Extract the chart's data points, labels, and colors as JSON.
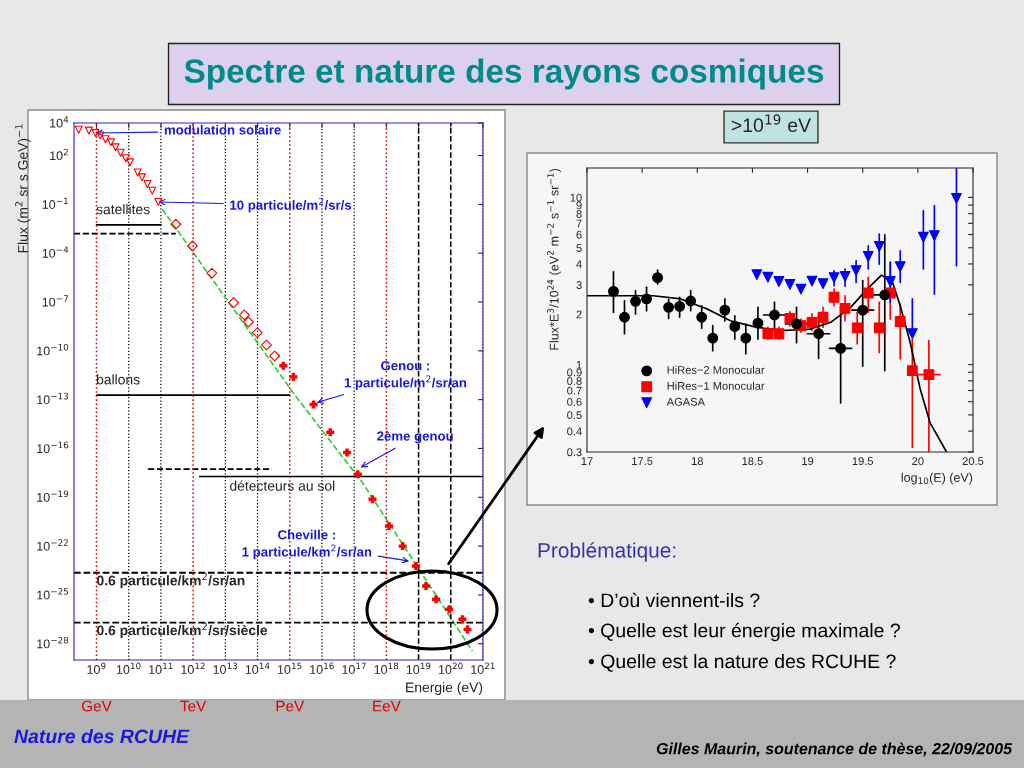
{
  "chart_data": [
    {
      "type": "scatter",
      "xlabel": "Energie (eV)",
      "ylabel": "Flux (m$^{2}$ sr s GeV)$^{−1}$",
      "log": "xy",
      "grid": "x",
      "xlim": [
        200000000.0,
        1e+21
      ],
      "ylim": [
        1e-29,
        10000.0
      ],
      "xticks": [
        {
          "value": 1000000000.0,
          "label": "10$^{9}$"
        },
        {
          "value": 10000000000.0,
          "label": "10$^{10}$"
        },
        {
          "value": 100000000000.0,
          "label": "10$^{11}$"
        },
        {
          "value": 1000000000000.0,
          "label": "10$^{12}$"
        },
        {
          "value": 10000000000000.0,
          "label": "10$^{13}$"
        },
        {
          "value": 100000000000000.0,
          "label": "10$^{14}$"
        },
        {
          "value": 1000000000000000.0,
          "label": "10$^{15}$"
        },
        {
          "value": 1e+16,
          "label": "10$^{16}$"
        },
        {
          "value": 1e+17,
          "label": "10$^{17}$"
        },
        {
          "value": 1e+18,
          "label": "10$^{18}$"
        },
        {
          "value": 1e+19,
          "label": "10$^{19}$"
        },
        {
          "value": 1e+20,
          "label": "10$^{20}$"
        },
        {
          "value": 1e+21,
          "label": "10$^{21}$"
        }
      ],
      "yticks": [
        {
          "value": 10000.0,
          "label": "10$^{4}$"
        },
        {
          "value": 100.0,
          "label": "10$^{2}$"
        },
        {
          "value": 0.1,
          "label": "10$^{−1}$"
        },
        {
          "value": 0.0001,
          "label": "10$^{−4}$"
        },
        {
          "value": 1e-07,
          "label": "10$^{−7}$"
        },
        {
          "value": 1e-10,
          "label": "10$^{−10}$"
        },
        {
          "value": 1e-13,
          "label": "10$^{−13}$"
        },
        {
          "value": 1e-16,
          "label": "10$^{−16}$"
        },
        {
          "value": 1e-19,
          "label": "10$^{−19}$"
        },
        {
          "value": 1e-22,
          "label": "10$^{−22}$"
        },
        {
          "value": 1e-25,
          "label": "10$^{−25}$"
        },
        {
          "value": 1e-28,
          "label": "10$^{−28}$"
        }
      ],
      "series": [
        {
          "type": "scatter",
          "marker": "triangle",
          "color": "#ff0000",
          "x": [
            280000000.0,
            580000000.0,
            930000000.0,
            1300000000.0,
            1900000000.0,
            2800000000.0,
            3900000000.0,
            5600000000.0,
            8100000000.0,
            11000000000.0,
            19000000000.0,
            26000000000.0,
            38000000000.0,
            54000000000.0,
            83000000000.0
          ],
          "values": [
            3900,
            3400,
            2400,
            1700,
            1000,
            650,
            320,
            150,
            68,
            38,
            9.1,
            4.6,
            1.8,
            0.69,
            0.14
          ]
        },
        {
          "type": "scatter",
          "marker": "diamond",
          "color": "#ff0000",
          "x": [
            290000000000.0,
            950000000000.0,
            3800000000000.0,
            18000000000000.0,
            39000000000000.0,
            52000000000000.0,
            98000000000000.0,
            190000000000000.0,
            340000000000000.0
          ],
          "values": [
            0.006,
            0.00028,
            5.9e-06,
            9.1e-08,
            1.6e-08,
            5.9e-09,
            1.3e-09,
            2.3e-10,
            4.8e-11
          ]
        },
        {
          "type": "scatter",
          "marker": "cross",
          "color": "#ff0000",
          "x": [
            630000000000000.0,
            1300000000000000.0,
            5500000000000000.0,
            1.8e+16,
            6e+16,
            1.3e+17,
            3.7e+17,
            1.2e+18,
            3.2e+18,
            8.3e+18,
            1.7e+19,
            3.5e+19,
            8.9e+19,
            2.3e+20,
            3.3e+20
          ],
          "values": [
            1.2e-11,
            2.5e-12,
            5e-14,
            1e-15,
            5.6e-17,
            2.6e-18,
            7.6e-20,
            1.7e-21,
            1e-22,
            6e-24,
            3.5e-25,
            5.4e-26,
            1.3e-26,
            3.2e-27,
            7.6e-28
          ]
        },
        {
          "type": "line",
          "line_style": "dashed",
          "color": "#33cc33",
          "x": [
            110000000000.0,
            1500000000000000.0,
            1.8e+17,
            4.7e+20
          ],
          "values": [
            0.051,
            1.7e-13,
            8.1e-19,
            3.5e-29
          ]
        },
        {
          "type": "line",
          "line_style": "solid",
          "color": "#000000",
          "x": [
            1000000000.0,
            100000000000.0
          ],
          "values": [
            0.0055,
            0.0055
          ]
        },
        {
          "type": "line",
          "line_style": "dashed",
          "color": "#000000",
          "x": [
            200000000.0,
            290000000000.0
          ],
          "values": [
            0.0016,
            0.0016
          ]
        },
        {
          "type": "line",
          "line_style": "solid",
          "color": "#000000",
          "x": [
            1000000000.0,
            1000000000000000.0
          ],
          "values": [
            1.9e-13,
            1.9e-13
          ]
        },
        {
          "type": "line",
          "line_style": "dashed",
          "color": "#000000",
          "x": [
            40000000000.0,
            280000000000000.0
          ],
          "values": [
            5.4e-18,
            5.4e-18
          ]
        },
        {
          "type": "line",
          "line_style": "solid",
          "color": "#000000",
          "x": [
            1600000000000.0,
            1e+21
          ],
          "values": [
            1.9e-18,
            1.9e-18
          ]
        }
      ],
      "ref_lines": [
        {
          "axis": "x",
          "value": 1000000000.0,
          "label": "GeV",
          "color": "#dd0000",
          "line_style": "dotted"
        },
        {
          "axis": "x",
          "value": 1000000000000.0,
          "label": "TeV",
          "color": "#dd0000",
          "line_style": "dotted"
        },
        {
          "axis": "x",
          "value": 1000000000000000.0,
          "label": "PeV",
          "color": "#dd0000",
          "line_style": "dotted"
        },
        {
          "axis": "x",
          "value": 1e+18,
          "label": "EeV",
          "color": "#dd0000",
          "line_style": "dotted"
        },
        {
          "axis": "y",
          "value": 2.3e-24,
          "label": "0.6 particule/km$^{2}$/sr/an",
          "color": "#000000",
          "line_style": "dashed"
        },
        {
          "axis": "y",
          "value": 2e-27,
          "label": "0.6 particule/km$^{2}$/sr/siècle",
          "color": "#000000",
          "line_style": "dashed"
        },
        {
          "axis": "x",
          "value": 1e+19,
          "label": null,
          "color": "#000000",
          "line_style": "dashed"
        },
        {
          "axis": "x",
          "value": 1e+20,
          "label": null,
          "color": "#000000",
          "line_style": "dashed"
        }
      ],
      "annotations": [
        {
          "text": "modulation solaire",
          "x": 930000000.0,
          "y": 2400
        },
        {
          "text": "10 particule/m$^{2}$/sr/s",
          "x": 83000000000.0,
          "y": 0.14
        },
        {
          "text": "Genou :\n1 particule/m$^{2}$/sr/an",
          "x": 6900000000000000.0,
          "y": 6.5e-14
        },
        {
          "text": "2ème genou",
          "x": 1.6e+17,
          "y": 6.8e-18
        },
        {
          "text": "Cheville :\n1 particule/km$^{2}$/sr/an",
          "x": 5.1e+18,
          "y": 1.2e-23
        },
        "satellites",
        "ballons",
        "détecteurs au sol"
      ]
    },
    {
      "type": "scatter",
      "title": ">10$^{19}$ eV",
      "xlabel": "log$_{10}$(E) (eV)",
      "ylabel": "Flux*E$^{3}$/10$^{24}$ (eV$^{2}$ m$^{−2}$ s$^{−1}$ sr$^{−1}$)",
      "log": "y",
      "legend": "bottom left",
      "xlim": [
        17,
        20.5
      ],
      "ylim": [
        0.3,
        15
      ],
      "xticks": [
        17,
        17.5,
        18,
        18.5,
        19,
        19.5,
        20,
        20.5
      ],
      "yticks": [
        0.3,
        0.4,
        0.5,
        0.6,
        0.7,
        0.8,
        0.9,
        1,
        2,
        3,
        4,
        5,
        6,
        7,
        8,
        9,
        10
      ],
      "series": [
        {
          "name": "HiRes−2 Monocular",
          "type": "scatter",
          "marker": "circle",
          "color": "#000000",
          "x": [
            17.24,
            17.34,
            17.44,
            17.54,
            17.64,
            17.74,
            17.84,
            17.94,
            18.04,
            18.14,
            18.25,
            18.34,
            18.44,
            18.55,
            18.7,
            18.9,
            19.1,
            19.3,
            19.5,
            19.7
          ],
          "values": [
            2.74,
            1.92,
            2.39,
            2.47,
            3.31,
            2.2,
            2.23,
            2.4,
            1.92,
            1.44,
            2.12,
            1.69,
            1.44,
            1.77,
            1.98,
            1.75,
            1.53,
            1.25,
            2.12,
            2.61
          ],
          "errors": [
            [
              2.05,
              3.59
            ],
            [
              1.53,
              2.41
            ],
            [
              2.01,
              2.77
            ],
            [
              2.1,
              2.9
            ],
            [
              3.03,
              3.68
            ],
            [
              1.89,
              2.45
            ],
            [
              1.92,
              2.53
            ],
            [
              2.1,
              2.77
            ],
            [
              1.65,
              2.25
            ],
            [
              1.21,
              1.71
            ],
            [
              1.82,
              2.47
            ],
            [
              1.42,
              1.96
            ],
            [
              1.16,
              1.75
            ],
            [
              1.42,
              2.2
            ],
            [
              1.63,
              2.36
            ],
            [
              1.35,
              2.2
            ],
            [
              1.09,
              1.96
            ],
            [
              0.59,
              2.2
            ],
            [
              0.98,
              3.18
            ],
            [
              0.92,
              5.98
            ]
          ],
          "xerrors": [
            null,
            null,
            null,
            null,
            null,
            null,
            null,
            null,
            null,
            null,
            null,
            null,
            null,
            null,
            [
              18.6,
              18.8
            ],
            [
              18.8,
              19.0
            ],
            [
              19.0,
              19.2
            ],
            [
              19.2,
              19.4
            ],
            [
              19.4,
              19.6
            ],
            [
              19.6,
              19.8
            ]
          ]
        },
        {
          "name": "HiRes−1 Monocular",
          "type": "scatter",
          "marker": "square",
          "color": "#ff0000",
          "x": [
            18.64,
            18.74,
            18.84,
            18.94,
            19.04,
            19.14,
            19.24,
            19.34,
            19.45,
            19.55,
            19.65,
            19.75,
            19.84,
            19.95,
            20.1
          ],
          "values": [
            1.53,
            1.53,
            1.89,
            1.71,
            1.79,
            1.92,
            2.53,
            2.17,
            1.66,
            2.68,
            1.66,
            2.68,
            1.81,
            0.92,
            0.87
          ],
          "errors": [
            [
              1.42,
              1.67
            ],
            [
              1.42,
              1.67
            ],
            [
              1.71,
              2.07
            ],
            [
              1.56,
              1.87
            ],
            [
              1.6,
              2.01
            ],
            [
              1.67,
              2.2
            ],
            [
              2.25,
              2.83
            ],
            [
              1.83,
              2.58
            ],
            [
              1.33,
              2.06
            ],
            [
              2.06,
              3.33
            ],
            [
              1.18,
              2.36
            ],
            [
              1.87,
              4.09
            ],
            [
              1.08,
              2.3
            ],
            [
              0.32,
              1.42
            ],
            [
              0.3,
              1.39
            ]
          ],
          "xerrors": [
            null,
            null,
            null,
            null,
            null,
            null,
            null,
            null,
            null,
            null,
            null,
            null,
            null,
            null,
            [
              19.95,
              20.2
            ]
          ]
        },
        {
          "name": "AGASA",
          "type": "scatter",
          "marker": "triangle",
          "color": "#0000ff",
          "x": [
            18.54,
            18.64,
            18.74,
            18.84,
            18.94,
            19.04,
            19.14,
            19.24,
            19.34,
            19.44,
            19.55,
            19.65,
            19.75,
            19.84,
            19.95,
            20.05,
            20.15,
            20.35
          ],
          "values": [
            3.45,
            3.33,
            3.14,
            3.02,
            2.83,
            3.16,
            3.05,
            3.31,
            3.37,
            3.65,
            4.44,
            5.1,
            3.14,
            3.85,
            1.53,
            5.78,
            5.91,
            9.87
          ],
          "errors": [
            null,
            null,
            null,
            null,
            null,
            null,
            null,
            [
              2.97,
              3.64
            ],
            [
              2.94,
              3.73
            ],
            [
              3.1,
              4.18
            ],
            [
              3.73,
              5.14
            ],
            [
              3.99,
              6.04
            ],
            [
              2.36,
              4.09
            ],
            [
              3.1,
              4.8
            ],
            [
              1.53,
              2.47
            ],
            [
              3.73,
              8.33
            ],
            [
              2.64,
              8.94
            ],
            [
              3.9,
              15
            ]
          ]
        },
        {
          "type": "line",
          "line_style": "solid",
          "color": "#000000",
          "x": [
            17.0,
            17.6,
            17.85,
            18.09,
            18.3,
            18.54,
            18.78,
            19.02,
            19.21,
            19.39,
            19.54,
            19.67,
            19.77,
            19.84,
            19.93,
            20.02,
            20.11,
            20.26
          ],
          "values": [
            2.58,
            2.58,
            2.47,
            2.15,
            1.83,
            1.67,
            1.6,
            1.63,
            1.79,
            2.2,
            2.83,
            3.43,
            3.11,
            2.25,
            1.36,
            0.72,
            0.45,
            0.3
          ]
        }
      ]
    },
    {
      "type": "other",
      "title": "Spectre et nature des rayons cosmiques",
      "annotations": [
        "Problématique:",
        "• D’où viennent-ils ?",
        "• Quelle est leur énergie maximale ?",
        "• Quelle est la nature des RCUHE ?",
        "Nature des RCUHE",
        "Gilles Maurin, soutenance de thèse, 22/09/2005"
      ]
    }
  ]
}
